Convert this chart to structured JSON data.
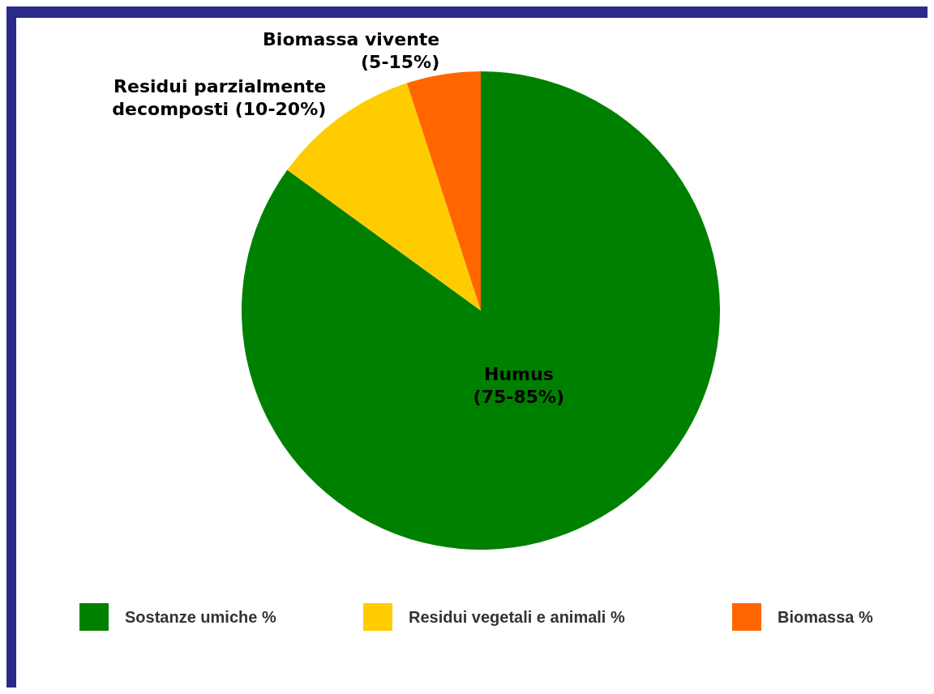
{
  "chart_data": {
    "type": "pie",
    "categories": [
      "Sostanze umiche %",
      "Residui vegetali e animali %",
      "Biomassa %"
    ],
    "values": [
      85,
      10,
      5
    ],
    "colors": [
      "#008000",
      "#ffcc00",
      "#ff6600"
    ],
    "annotations": [
      "Humus\n(75-85%)",
      "Residui parzialmente\ndecomposti (10-20%)",
      "Biomassa vivente\n(5-15%)"
    ],
    "legend": "bottom"
  }
}
